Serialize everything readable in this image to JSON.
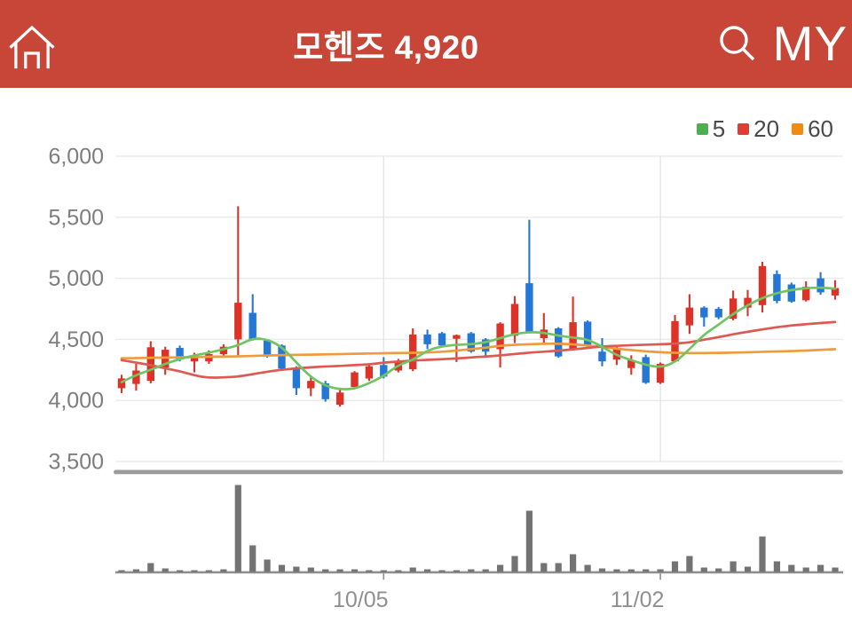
{
  "header": {
    "title": "모헨즈 4,920",
    "my_label": "MY",
    "bg_color": "#c74638"
  },
  "chart_data": {
    "type": "candlestick_with_volume",
    "symbol": "모헨즈",
    "last_price": "4,920",
    "legend": [
      {
        "label": "5",
        "color": "#4cb04e"
      },
      {
        "label": "20",
        "color": "#e23b31"
      },
      {
        "label": "60",
        "color": "#ee8c14"
      }
    ],
    "y_axis": {
      "ticks": [
        {
          "label": "6,000",
          "value": 6000
        },
        {
          "label": "5,500",
          "value": 5500
        },
        {
          "label": "5,000",
          "value": 5000
        },
        {
          "label": "4,500",
          "value": 4500
        },
        {
          "label": "4,000",
          "value": 4000
        },
        {
          "label": "3,500",
          "value": 3500
        }
      ],
      "range": [
        3420,
        6090
      ]
    },
    "x_axis": {
      "ticks": [
        {
          "label": "10/05",
          "index": 18
        },
        {
          "label": "11/02",
          "index": 37
        }
      ]
    },
    "colors": {
      "up": "#dc3227",
      "down": "#2577d6",
      "ma5": "#70c462",
      "ma20": "#dd5a52",
      "ma60": "#ef9b3c",
      "volume": "#737373",
      "grid": "#ebebeb",
      "vgrid": "#e6e6e6",
      "axis_text": "#7d7d7d",
      "x_text": "#8f8f8f",
      "axis_line": "#8f8f8f",
      "divider": "#9b9b9b"
    },
    "candles": {
      "format": [
        "open",
        "high",
        "low",
        "close",
        "volume_rel"
      ],
      "ohlcv": [
        [
          4100,
          4210,
          4060,
          4180,
          2
        ],
        [
          4135,
          4300,
          4080,
          4245,
          3
        ],
        [
          4160,
          4485,
          4140,
          4435,
          10
        ],
        [
          4270,
          4440,
          4210,
          4415,
          4
        ],
        [
          4430,
          4450,
          4320,
          4340,
          2
        ],
        [
          4320,
          4390,
          4230,
          4365,
          2
        ],
        [
          4320,
          4410,
          4300,
          4380,
          2
        ],
        [
          4380,
          4460,
          4350,
          4440,
          3
        ],
        [
          4500,
          5590,
          4370,
          4800,
          98
        ],
        [
          4717,
          4870,
          4490,
          4500,
          30
        ],
        [
          4490,
          4500,
          4350,
          4370,
          14
        ],
        [
          4450,
          4460,
          4250,
          4260,
          8
        ],
        [
          4270,
          4280,
          4045,
          4100,
          6
        ],
        [
          4100,
          4195,
          4035,
          4160,
          5
        ],
        [
          4140,
          4160,
          3990,
          4010,
          3
        ],
        [
          3965,
          4100,
          3950,
          4065,
          3
        ],
        [
          4110,
          4240,
          4090,
          4230,
          3
        ],
        [
          4180,
          4290,
          4160,
          4280,
          2
        ],
        [
          4290,
          4355,
          4180,
          4195,
          2
        ],
        [
          4245,
          4340,
          4230,
          4325,
          2
        ],
        [
          4255,
          4590,
          4240,
          4540,
          5
        ],
        [
          4540,
          4580,
          4420,
          4460,
          3
        ],
        [
          4550,
          4560,
          4440,
          4450,
          2
        ],
        [
          4505,
          4540,
          4315,
          4535,
          2
        ],
        [
          4550,
          4560,
          4390,
          4400,
          3
        ],
        [
          4500,
          4510,
          4355,
          4400,
          3
        ],
        [
          4420,
          4640,
          4270,
          4630,
          8
        ],
        [
          4530,
          4855,
          4470,
          4790,
          18
        ],
        [
          4960,
          5480,
          4550,
          4555,
          69
        ],
        [
          4510,
          4715,
          4470,
          4580,
          10
        ],
        [
          4590,
          4600,
          4350,
          4360,
          10
        ],
        [
          4420,
          4850,
          4410,
          4640,
          20
        ],
        [
          4645,
          4655,
          4440,
          4450,
          8
        ],
        [
          4400,
          4510,
          4280,
          4320,
          4
        ],
        [
          4335,
          4445,
          4290,
          4425,
          3
        ],
        [
          4265,
          4370,
          4210,
          4330,
          3
        ],
        [
          4355,
          4375,
          4135,
          4145,
          3
        ],
        [
          4145,
          4310,
          4135,
          4300,
          3
        ],
        [
          4320,
          4700,
          4310,
          4650,
          12
        ],
        [
          4615,
          4870,
          4545,
          4760,
          18
        ],
        [
          4760,
          4770,
          4605,
          4680,
          5
        ],
        [
          4750,
          4765,
          4665,
          4680,
          4
        ],
        [
          4670,
          4900,
          4655,
          4835,
          12
        ],
        [
          4760,
          4905,
          4690,
          4840,
          6
        ],
        [
          4780,
          5135,
          4720,
          5100,
          40
        ],
        [
          5035,
          5065,
          4795,
          4815,
          12
        ],
        [
          4950,
          4965,
          4800,
          4810,
          8
        ],
        [
          4820,
          4975,
          4810,
          4930,
          5
        ],
        [
          5000,
          5050,
          4865,
          4885,
          8
        ],
        [
          4860,
          4985,
          4825,
          4920,
          5
        ]
      ]
    },
    "moving_averages": {
      "ma5": [
        4150,
        4210,
        4250,
        4300,
        4340,
        4370,
        4390,
        4420,
        4450,
        4510,
        4500,
        4440,
        4310,
        4190,
        4120,
        4090,
        4095,
        4140,
        4200,
        4290,
        4330,
        4410,
        4445,
        4455,
        4460,
        4475,
        4510,
        4545,
        4560,
        4555,
        4530,
        4515,
        4500,
        4440,
        4370,
        4330,
        4290,
        4270,
        4310,
        4420,
        4540,
        4620,
        4710,
        4780,
        4840,
        4880,
        4905,
        4920,
        4925,
        4915
      ],
      "ma20": [
        4330,
        4310,
        4290,
        4262,
        4240,
        4205,
        4185,
        4188,
        4195,
        4215,
        4235,
        4252,
        4262,
        4272,
        4278,
        4282,
        4290,
        4295,
        4310,
        4318,
        4328,
        4332,
        4338,
        4343,
        4352,
        4360,
        4368,
        4380,
        4392,
        4398,
        4408,
        4418,
        4430,
        4442,
        4448,
        4452,
        4456,
        4460,
        4465,
        4475,
        4498,
        4518,
        4542,
        4562,
        4582,
        4600,
        4614,
        4624,
        4634,
        4642
      ],
      "ma60": [
        4345,
        4347,
        4349,
        4351,
        4353,
        4355,
        4357,
        4359,
        4361,
        4364,
        4368,
        4371,
        4373,
        4375,
        4377,
        4379,
        4382,
        4384,
        4386,
        4388,
        4390,
        4392,
        4398,
        4408,
        4420,
        4432,
        4448,
        4456,
        4460,
        4464,
        4465,
        4460,
        4450,
        4438,
        4424,
        4412,
        4402,
        4394,
        4390,
        4388,
        4388,
        4389,
        4391,
        4394,
        4398,
        4401,
        4404,
        4408,
        4414,
        4420
      ]
    }
  }
}
